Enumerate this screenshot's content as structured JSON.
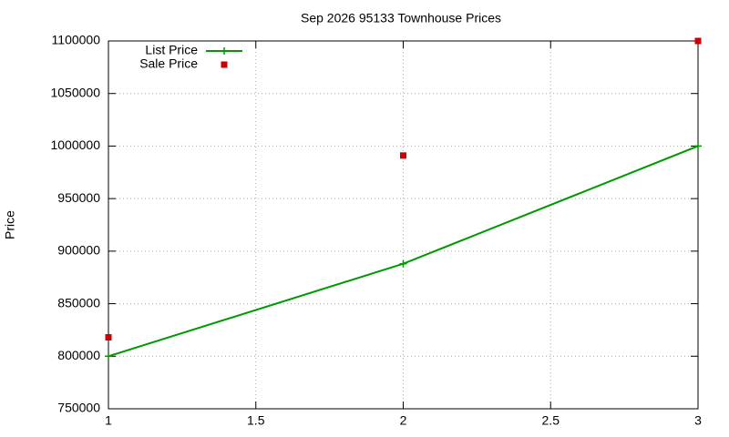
{
  "chart_data": {
    "type": "line",
    "title": "Sep 2026 95133 Townhouse Prices",
    "y_label": "Price",
    "x": [
      1,
      2,
      3
    ],
    "series": [
      {
        "name": "List Price",
        "color": "#009900",
        "values": [
          800000,
          888000,
          1000000
        ],
        "marker": "plus",
        "line": true
      },
      {
        "name": "Sale Price",
        "color": "#cc0000",
        "values": [
          818000,
          991000,
          1100000
        ],
        "marker": "square",
        "line": false
      }
    ],
    "xlim": [
      1,
      3
    ],
    "xticks": [
      1,
      1.5,
      2,
      2.5,
      3
    ],
    "ylim": [
      750000,
      1100000
    ],
    "yticks": [
      750000,
      800000,
      850000,
      900000,
      950000,
      1000000,
      1050000,
      1100000
    ],
    "grid": true,
    "legend": "top-left"
  }
}
